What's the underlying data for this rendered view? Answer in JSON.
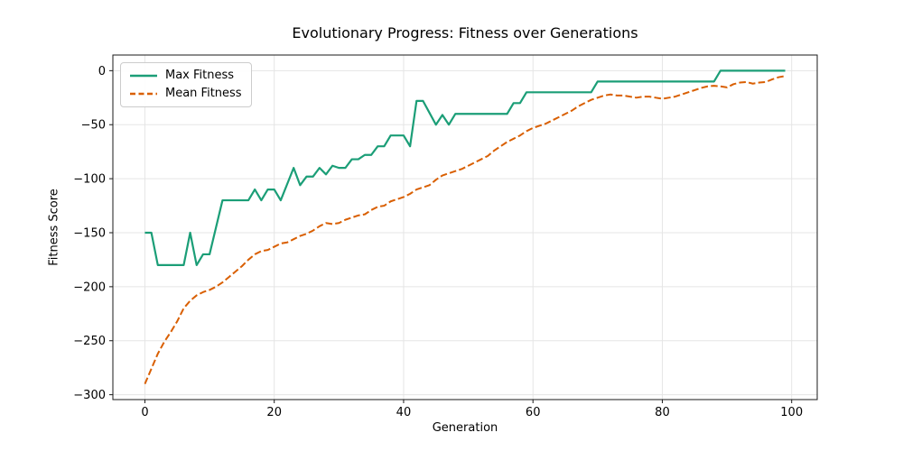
{
  "figure": {
    "title": "Evolutionary Progress: Fitness over Generations",
    "xlabel": "Generation",
    "ylabel": "Fitness Score"
  },
  "chart_data": {
    "type": "line",
    "title": "Evolutionary Progress: Fitness over Generations",
    "xlabel": "Generation",
    "ylabel": "Fitness Score",
    "grid": true,
    "legend_position": "upper left",
    "xlim": [
      -4.95,
      103.95
    ],
    "ylim": [
      -304.5,
      14.5
    ],
    "x_ticks": [
      {
        "value": 0,
        "label": "0"
      },
      {
        "value": 20,
        "label": "20"
      },
      {
        "value": 40,
        "label": "40"
      },
      {
        "value": 60,
        "label": "60"
      },
      {
        "value": 80,
        "label": "80"
      },
      {
        "value": 100,
        "label": "100"
      }
    ],
    "y_ticks": [
      {
        "value": 0,
        "label": "0"
      },
      {
        "value": -50,
        "label": "−50"
      },
      {
        "value": -100,
        "label": "−100"
      },
      {
        "value": -150,
        "label": "−150"
      },
      {
        "value": -200,
        "label": "−200"
      },
      {
        "value": -250,
        "label": "−250"
      },
      {
        "value": -300,
        "label": "−300"
      }
    ],
    "x_range": [
      0,
      99,
      1
    ],
    "series": [
      {
        "name": "Max Fitness",
        "color": "#1b9e77",
        "style": "solid",
        "line_width": 2.2,
        "values": [
          -150,
          -150,
          -180,
          -180,
          -180,
          -180,
          -180,
          -150,
          -180,
          -170,
          -170,
          -145,
          -120,
          -120,
          -120,
          -120,
          -120,
          -110,
          -120,
          -110,
          -110,
          -120,
          -105,
          -90,
          -106,
          -98,
          -98,
          -90,
          -96,
          -88,
          -90,
          -90,
          -82,
          -82,
          -78,
          -78,
          -70,
          -70,
          -60,
          -60,
          -60,
          -70,
          -28,
          -28,
          -39,
          -50,
          -41,
          -50,
          -40,
          -40,
          -40,
          -40,
          -40,
          -40,
          -40,
          -40,
          -40,
          -30,
          -30,
          -20,
          -20,
          -20,
          -20,
          -20,
          -20,
          -20,
          -20,
          -20,
          -20,
          -20,
          -10,
          -10,
          -10,
          -10,
          -10,
          -10,
          -10,
          -10,
          -10,
          -10,
          -10,
          -10,
          -10,
          -10,
          -10,
          -10,
          -10,
          -10,
          -10,
          0,
          0,
          0,
          0,
          0,
          0,
          0,
          0,
          0,
          0,
          0
        ]
      },
      {
        "name": "Mean Fitness",
        "color": "#d95f02",
        "style": "dashed",
        "line_width": 2.0,
        "values": [
          -290,
          -276,
          -262,
          -251,
          -242,
          -232,
          -220,
          -213,
          -208,
          -205,
          -203,
          -200,
          -196,
          -191,
          -186,
          -181,
          -175,
          -170,
          -167,
          -166,
          -163,
          -160,
          -159,
          -156,
          -153,
          -151,
          -148,
          -144,
          -141,
          -142,
          -141,
          -138,
          -136,
          -134,
          -133,
          -129,
          -126,
          -125,
          -121,
          -119,
          -117,
          -114,
          -110,
          -108,
          -106,
          -101,
          -97,
          -95,
          -93,
          -91,
          -88,
          -85,
          -82,
          -79,
          -74,
          -70,
          -66,
          -63,
          -60,
          -56,
          -53,
          -51,
          -49,
          -46,
          -43,
          -40,
          -37,
          -33,
          -30,
          -27,
          -25,
          -23,
          -22,
          -23,
          -23,
          -24,
          -25,
          -24,
          -24,
          -25,
          -26,
          -25,
          -24,
          -22,
          -20,
          -18,
          -16,
          -14.5,
          -14,
          -14.5,
          -15.5,
          -12.5,
          -11,
          -10.5,
          -12,
          -11,
          -10.5,
          -8,
          -6,
          -5
        ]
      }
    ],
    "colors": {
      "grid": "#e5e5e5",
      "spine": "#1a1a1a",
      "background": "#ffffff"
    }
  }
}
